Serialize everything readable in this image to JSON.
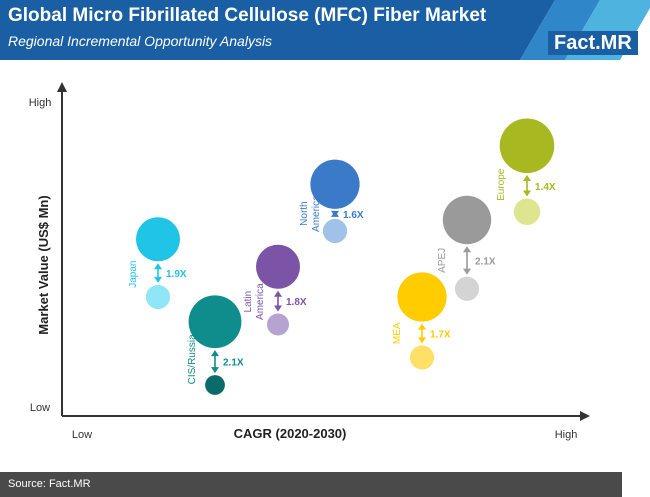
{
  "header": {
    "title": "Global Micro Fibrillated Cellulose (MFC) Fiber Market",
    "subtitle": "Regional Incremental Opportunity Analysis",
    "brand": "Fact",
    "brand_suffix": ".MR"
  },
  "footer": {
    "source": "Source: Fact.MR"
  },
  "colors": {
    "header_bg": "#1a5fa3",
    "header_accent": "#4fb3e0",
    "footer_bg": "#4a4a4a"
  },
  "chart_data": {
    "type": "scatter",
    "title": "",
    "xlabel": "CAGR (2020-2030)",
    "ylabel": "Market Value (US$ Mn)",
    "x_low": "Low",
    "x_high": "High",
    "y_low": "Low",
    "y_high": "High",
    "grid": false,
    "legend": "none",
    "series": [
      {
        "name": "Japan",
        "multiplier": "1.9X",
        "color": "#1fc4e6",
        "color_2020": "#8ee6f7",
        "x": 0.17,
        "y_2030": 0.57,
        "y_2020": 0.36,
        "size_2030": 1.0,
        "size_2020": 0.55,
        "label_side": "left"
      },
      {
        "name": "CIS/Russia",
        "multiplier": "2.1X",
        "color": "#0f8c8c",
        "color_2020": "#0b6b6b",
        "x": 0.36,
        "y_2030": 0.27,
        "y_2020": 0.04,
        "size_2030": 1.2,
        "size_2020": 0.45,
        "label_side": "left"
      },
      {
        "name": "Latin America",
        "multiplier": "1.8X",
        "color": "#7b54a8",
        "color_2020": "#b6a3cf",
        "x": 0.57,
        "y_2030": 0.47,
        "y_2020": 0.26,
        "size_2030": 1.0,
        "size_2020": 0.5,
        "label_side": "left"
      },
      {
        "name": "North America",
        "multiplier": "1.6X",
        "color": "#3a7ac9",
        "color_2020": "#a0c2e8",
        "x": 0.76,
        "y_2030": 0.77,
        "y_2020": 0.6,
        "size_2030": 1.12,
        "size_2020": 0.55,
        "label_side": "left"
      },
      {
        "name": "MEA",
        "multiplier": "1.7X",
        "color": "#ffcc00",
        "color_2020": "#ffe066",
        "x": 1.05,
        "y_2030": 0.36,
        "y_2020": 0.14,
        "size_2030": 1.12,
        "size_2020": 0.55,
        "label_side": "left"
      },
      {
        "name": "APEJ",
        "multiplier": "2.1X",
        "color": "#9a9a9a",
        "color_2020": "#d4d4d4",
        "x": 1.2,
        "y_2030": 0.64,
        "y_2020": 0.39,
        "size_2030": 1.1,
        "size_2020": 0.55,
        "label_side": "left"
      },
      {
        "name": "Europe",
        "multiplier": "1.4X",
        "color": "#a8b820",
        "color_2020": "#dde68f",
        "x": 1.4,
        "y_2030": 0.91,
        "y_2020": 0.67,
        "size_2030": 1.24,
        "size_2020": 0.6,
        "label_side": "left"
      }
    ]
  }
}
